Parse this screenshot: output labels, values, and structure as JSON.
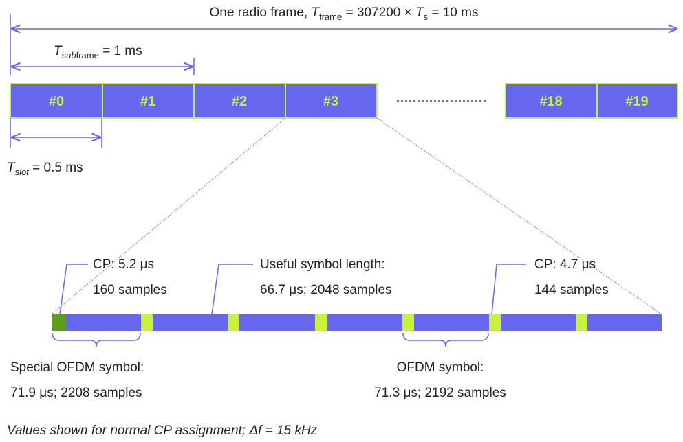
{
  "frame_label": {
    "prefix": "One radio frame, ",
    "symbol": "T",
    "subscript": "frame",
    "middle": " = 307200 × ",
    "symbol2": "T",
    "subscript2": "s",
    "suffix": " = 10 ms"
  },
  "subframe_label": {
    "symbol": "T",
    "subscript_italic": "sub",
    "subscript": "frame",
    "suffix": " = 1 ms"
  },
  "slot_label": {
    "symbol": "T",
    "subscript": "slot",
    "suffix": " = 0.5 ms"
  },
  "slots": [
    "#0",
    "#1",
    "#2",
    "#3",
    "#18",
    "#19"
  ],
  "callouts": [
    {
      "line1": "CP: 5.2 μs",
      "line2": "160 samples"
    },
    {
      "line1": "Useful symbol length:",
      "line2": "66.7 μs; 2048 samples"
    },
    {
      "line1": "CP: 4.7 μs",
      "line2": "144 samples"
    }
  ],
  "symbols": [
    {
      "line1": "Special OFDM symbol:",
      "line2": "71.9 μs; 2208 samples"
    },
    {
      "line1": "OFDM symbol:",
      "line2": "71.3 μs; 2192 samples"
    }
  ],
  "footnote": "Values shown for normal CP assignment; Δf = 15 kHz"
}
